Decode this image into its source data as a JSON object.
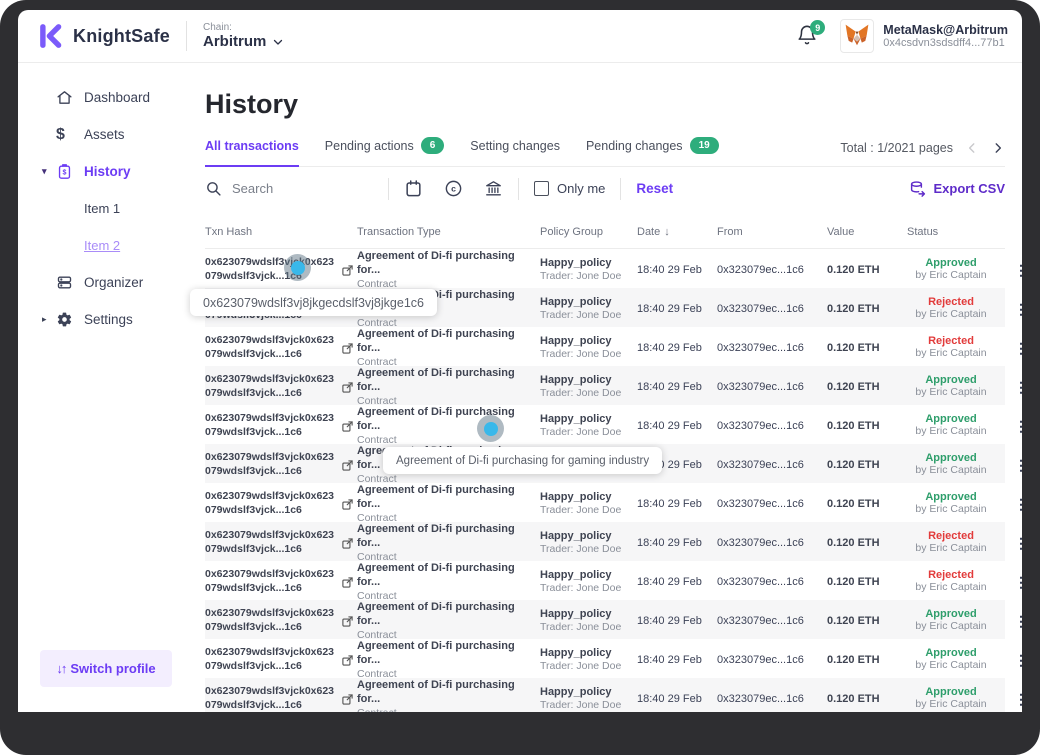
{
  "header": {
    "brand": "KnightSafe",
    "chain_label": "Chain:",
    "chain_value": "Arbitrum",
    "notification_count": "9",
    "wallet_name": "MetaMask@Arbitrum",
    "wallet_address": "0x4csdvn3sdsdff4...77b1"
  },
  "sidebar": {
    "items": [
      {
        "label": "Dashboard"
      },
      {
        "label": "Assets"
      },
      {
        "label": "History"
      },
      {
        "label": "Item 1"
      },
      {
        "label": "Item 2"
      },
      {
        "label": "Organizer"
      },
      {
        "label": "Settings"
      }
    ],
    "switch_profile": "Switch profile"
  },
  "main": {
    "title": "History",
    "tabs": [
      {
        "label": "All transactions",
        "active": true
      },
      {
        "label": "Pending actions",
        "badge": "6"
      },
      {
        "label": "Setting changes"
      },
      {
        "label": "Pending changes",
        "badge": "19"
      }
    ],
    "pagination": "Total : 1/2021 pages",
    "search_placeholder": "Search",
    "only_me_label": "Only me",
    "reset_label": "Reset",
    "export_label": "Export CSV"
  },
  "table": {
    "columns": [
      "Txn Hash",
      "Transaction Type",
      "Policy Group",
      "Date",
      "From",
      "Value",
      "Status"
    ],
    "rows": [
      {
        "hash_line1": "0x623079wdslf3vjck0x623",
        "hash_line2": "079wdslf3vjck...1c6",
        "type": "Agreement of Di-fi purchasing for...",
        "type_sub": "Contract",
        "policy": "Happy_policy",
        "policy_sub": "Trader: Jone Doe",
        "date": "18:40 29 Feb",
        "from": "0x323079ec...1c6",
        "value": "0.120 ETH",
        "status": "Approved",
        "status_sub": "by Eric Captain"
      },
      {
        "hash_line1": "0x623079wdslf3vjck0x623",
        "hash_line2": "079wdslf3vjck...1c6",
        "type": "Agreement of Di-fi purchasing for...",
        "type_sub": "Contract",
        "policy": "Happy_policy",
        "policy_sub": "Trader: Jone Doe",
        "date": "18:40 29 Feb",
        "from": "0x323079ec...1c6",
        "value": "0.120 ETH",
        "status": "Rejected",
        "status_sub": "by Eric Captain"
      },
      {
        "hash_line1": "0x623079wdslf3vjck0x623",
        "hash_line2": "079wdslf3vjck...1c6",
        "type": "Agreement of Di-fi purchasing for...",
        "type_sub": "Contract",
        "policy": "Happy_policy",
        "policy_sub": "Trader: Jone Doe",
        "date": "18:40 29 Feb",
        "from": "0x323079ec...1c6",
        "value": "0.120 ETH",
        "status": "Rejected",
        "status_sub": "by Eric Captain"
      },
      {
        "hash_line1": "0x623079wdslf3vjck0x623",
        "hash_line2": "079wdslf3vjck...1c6",
        "type": "Agreement of Di-fi purchasing for...",
        "type_sub": "Contract",
        "policy": "Happy_policy",
        "policy_sub": "Trader: Jone Doe",
        "date": "18:40 29 Feb",
        "from": "0x323079ec...1c6",
        "value": "0.120 ETH",
        "status": "Approved",
        "status_sub": "by Eric Captain"
      },
      {
        "hash_line1": "0x623079wdslf3vjck0x623",
        "hash_line2": "079wdslf3vjck...1c6",
        "type": "Agreement of Di-fi purchasing for...",
        "type_sub": "Contract",
        "policy": "Happy_policy",
        "policy_sub": "Trader: Jone Doe",
        "date": "18:40 29 Feb",
        "from": "0x323079ec...1c6",
        "value": "0.120 ETH",
        "status": "Approved",
        "status_sub": "by Eric Captain"
      },
      {
        "hash_line1": "0x623079wdslf3vjck0x623",
        "hash_line2": "079wdslf3vjck...1c6",
        "type": "Agreement of Di-fi purchasing for...",
        "type_sub": "Contract",
        "policy": "Happy_policy",
        "policy_sub": "Trader: Jone Doe",
        "date": "18:40 29 Feb",
        "from": "0x323079ec...1c6",
        "value": "0.120 ETH",
        "status": "Approved",
        "status_sub": "by Eric Captain"
      },
      {
        "hash_line1": "0x623079wdslf3vjck0x623",
        "hash_line2": "079wdslf3vjck...1c6",
        "type": "Agreement of Di-fi purchasing for...",
        "type_sub": "Contract",
        "policy": "Happy_policy",
        "policy_sub": "Trader: Jone Doe",
        "date": "18:40 29 Feb",
        "from": "0x323079ec...1c6",
        "value": "0.120 ETH",
        "status": "Approved",
        "status_sub": "by Eric Captain"
      },
      {
        "hash_line1": "0x623079wdslf3vjck0x623",
        "hash_line2": "079wdslf3vjck...1c6",
        "type": "Agreement of Di-fi purchasing for...",
        "type_sub": "Contract",
        "policy": "Happy_policy",
        "policy_sub": "Trader: Jone Doe",
        "date": "18:40 29 Feb",
        "from": "0x323079ec...1c6",
        "value": "0.120 ETH",
        "status": "Rejected",
        "status_sub": "by Eric Captain"
      },
      {
        "hash_line1": "0x623079wdslf3vjck0x623",
        "hash_line2": "079wdslf3vjck...1c6",
        "type": "Agreement of Di-fi purchasing for...",
        "type_sub": "Contract",
        "policy": "Happy_policy",
        "policy_sub": "Trader: Jone Doe",
        "date": "18:40 29 Feb",
        "from": "0x323079ec...1c6",
        "value": "0.120 ETH",
        "status": "Rejected",
        "status_sub": "by Eric Captain"
      },
      {
        "hash_line1": "0x623079wdslf3vjck0x623",
        "hash_line2": "079wdslf3vjck...1c6",
        "type": "Agreement of Di-fi purchasing for...",
        "type_sub": "Contract",
        "policy": "Happy_policy",
        "policy_sub": "Trader: Jone Doe",
        "date": "18:40 29 Feb",
        "from": "0x323079ec...1c6",
        "value": "0.120 ETH",
        "status": "Approved",
        "status_sub": "by Eric Captain"
      },
      {
        "hash_line1": "0x623079wdslf3vjck0x623",
        "hash_line2": "079wdslf3vjck...1c6",
        "type": "Agreement of Di-fi purchasing for...",
        "type_sub": "Contract",
        "policy": "Happy_policy",
        "policy_sub": "Trader: Jone Doe",
        "date": "18:40 29 Feb",
        "from": "0x323079ec...1c6",
        "value": "0.120 ETH",
        "status": "Approved",
        "status_sub": "by Eric Captain"
      },
      {
        "hash_line1": "0x623079wdslf3vjck0x623",
        "hash_line2": "079wdslf3vjck...1c6",
        "type": "Agreement of Di-fi purchasing for...",
        "type_sub": "Contract",
        "policy": "Happy_policy",
        "policy_sub": "Trader: Jone Doe",
        "date": "18:40 29 Feb",
        "from": "0x323079ec...1c6",
        "value": "0.120 ETH",
        "status": "Approved",
        "status_sub": "by Eric Captain"
      }
    ]
  },
  "tooltips": {
    "hash_tooltip": "0x623079wdslf3vj8jkgecdslf3vj8jkge1c6",
    "type_tooltip": "Agreement of Di-fi purchasing for gaming industry"
  },
  "colors": {
    "accent_purple": "#6c3cf4",
    "link_purple": "#a98cf8",
    "badge_green": "#2ead7c",
    "approved_green": "#2e9e6b",
    "rejected_red": "#e23b3b",
    "frame_dark": "#2e2e31",
    "row_alt": "#f6f6f7"
  }
}
